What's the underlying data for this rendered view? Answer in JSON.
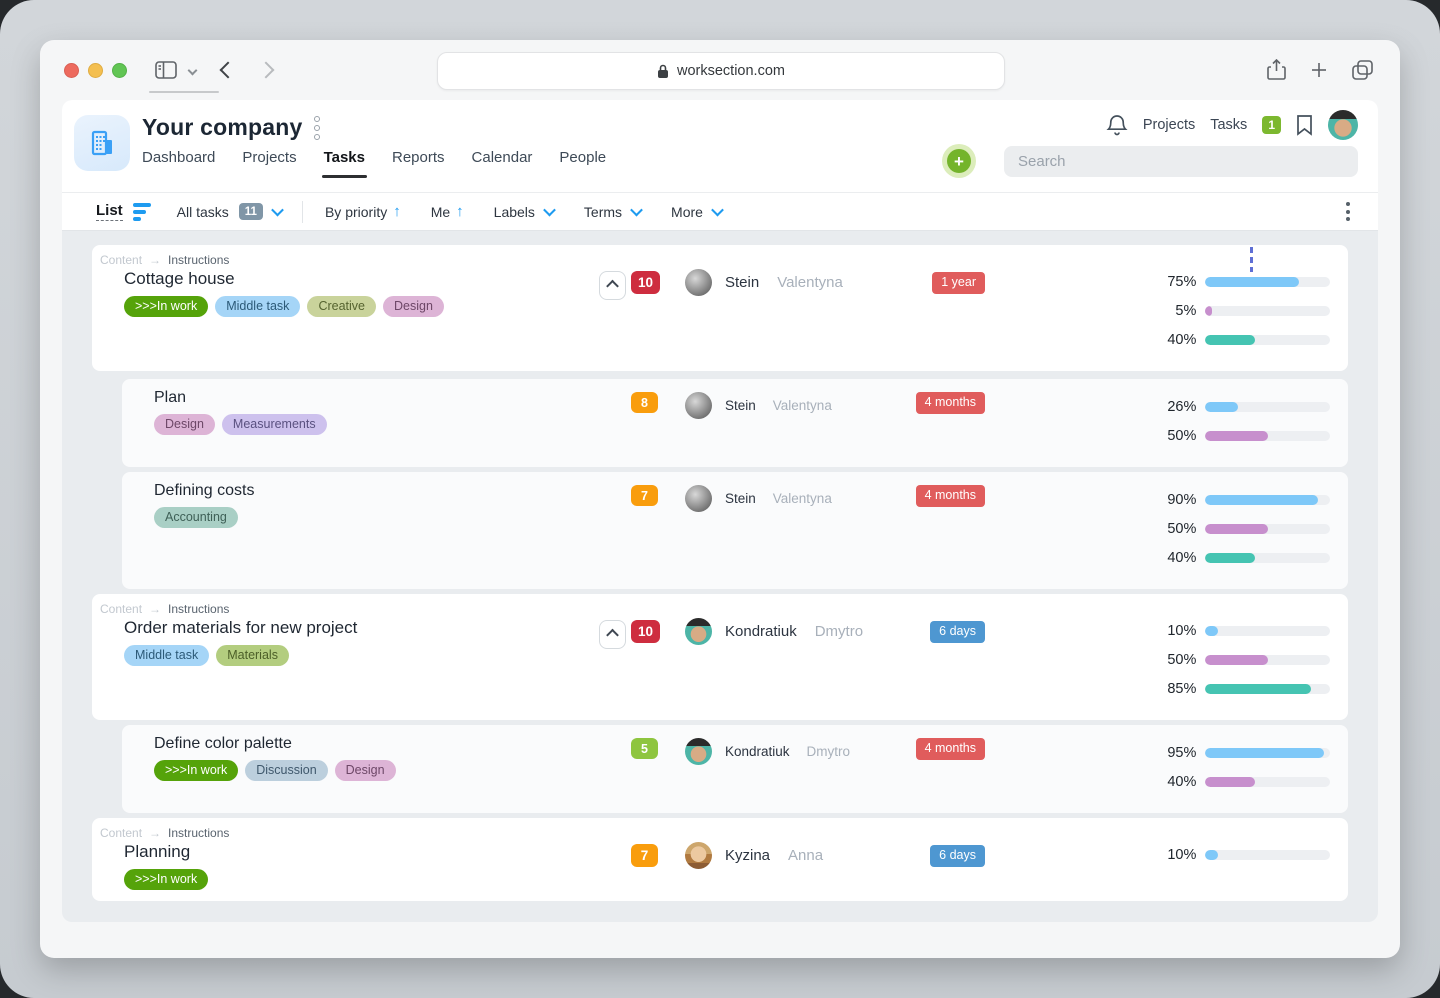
{
  "browser": {
    "url": "worksection.com"
  },
  "header": {
    "company": "Your company",
    "nav": [
      {
        "label": "Dashboard"
      },
      {
        "label": "Projects"
      },
      {
        "label": "Tasks"
      },
      {
        "label": "Reports"
      },
      {
        "label": "Calendar"
      },
      {
        "label": "People"
      }
    ],
    "quick": {
      "projects": "Projects",
      "tasks": "Tasks",
      "tasks_badge": "1"
    },
    "search_placeholder": "Search"
  },
  "filterbar": {
    "view": "List",
    "all_tasks": "All tasks",
    "count": "11",
    "options": [
      {
        "label": "By priority",
        "glyph": "up"
      },
      {
        "label": "Me",
        "glyph": "up"
      },
      {
        "label": "Labels",
        "glyph": "down"
      },
      {
        "label": "Terms",
        "glyph": "down"
      },
      {
        "label": "More",
        "glyph": "down"
      }
    ]
  },
  "palette": {
    "accent_blue": "#1e9bf0",
    "count": {
      "red": "#ce2d3f",
      "orange": "#f99d0d",
      "green": "#8ec53f"
    },
    "term": {
      "red": "#e05c5c",
      "blue": "#4e97d1"
    },
    "bar": {
      "blue": "#7ec8f8",
      "purple": "#c78fcd",
      "teal": "#45c4b2"
    },
    "tag": {
      "inwork": {
        "bg": "#55a30a",
        "fg": "#ffffff"
      },
      "blue": {
        "bg": "#a5d5f7",
        "fg": "#2c5a78"
      },
      "olive": {
        "bg": "#c9d39b",
        "fg": "#55632f"
      },
      "pink": {
        "bg": "#ddb4d6",
        "fg": "#6d4767"
      },
      "lavender": {
        "bg": "#cdc1ed",
        "fg": "#5a5180"
      },
      "teal": {
        "bg": "#a9cfc5",
        "fg": "#3f6057"
      },
      "bluegrey": {
        "bg": "#bccfdd",
        "fg": "#3f586c"
      },
      "green": {
        "bg": "#b3cd7f",
        "fg": "#4c5f28"
      }
    }
  },
  "tasks": [
    {
      "kind": "parent",
      "breadcrumb": [
        "Content",
        "Instructions"
      ],
      "title": "Cottage house",
      "tags": [
        {
          "label": ">>>In work",
          "style": "inwork"
        },
        {
          "label": "Middle task",
          "style": "blue"
        },
        {
          "label": "Creative",
          "style": "olive"
        },
        {
          "label": "Design",
          "style": "pink"
        }
      ],
      "collapse": true,
      "marker": true,
      "count": {
        "value": "10",
        "color": "red"
      },
      "person": {
        "last": "Stein",
        "first": "Valentyna",
        "avatar": "stein"
      },
      "term": {
        "label": "1 year",
        "color": "red"
      },
      "progress": [
        {
          "pct": 75,
          "color": "blue"
        },
        {
          "pct": 5,
          "color": "purple"
        },
        {
          "pct": 40,
          "color": "teal"
        }
      ]
    },
    {
      "kind": "sub",
      "title": "Plan",
      "tags": [
        {
          "label": "Design",
          "style": "pink"
        },
        {
          "label": "Measurements",
          "style": "lavender"
        }
      ],
      "collapse": false,
      "marker": false,
      "count": {
        "value": "8",
        "color": "orange"
      },
      "person": {
        "last": "Stein",
        "first": "Valentyna",
        "avatar": "stein"
      },
      "term": {
        "label": "4 months",
        "color": "red"
      },
      "progress": [
        {
          "pct": 26,
          "color": "blue"
        },
        {
          "pct": 50,
          "color": "purple"
        }
      ]
    },
    {
      "kind": "sub",
      "title": "Defining costs",
      "tags": [
        {
          "label": "Accounting",
          "style": "teal"
        }
      ],
      "collapse": false,
      "marker": false,
      "count": {
        "value": "7",
        "color": "orange"
      },
      "person": {
        "last": "Stein",
        "first": "Valentyna",
        "avatar": "stein"
      },
      "term": {
        "label": "4 months",
        "color": "red"
      },
      "progress": [
        {
          "pct": 90,
          "color": "blue"
        },
        {
          "pct": 50,
          "color": "purple"
        },
        {
          "pct": 40,
          "color": "teal"
        }
      ]
    },
    {
      "kind": "parent",
      "breadcrumb": [
        "Content",
        "Instructions"
      ],
      "title": "Order materials for new project",
      "tags": [
        {
          "label": "Middle task",
          "style": "blue"
        },
        {
          "label": "Materials",
          "style": "green"
        }
      ],
      "collapse": true,
      "marker": false,
      "count": {
        "value": "10",
        "color": "red"
      },
      "person": {
        "last": "Kondratiuk",
        "first": "Dmytro",
        "avatar": "kondratiuk"
      },
      "term": {
        "label": "6 days",
        "color": "blue"
      },
      "progress": [
        {
          "pct": 10,
          "color": "blue"
        },
        {
          "pct": 50,
          "color": "purple"
        },
        {
          "pct": 85,
          "color": "teal"
        }
      ]
    },
    {
      "kind": "sub",
      "title": "Define color palette",
      "tags": [
        {
          "label": ">>>In work",
          "style": "inwork"
        },
        {
          "label": "Discussion",
          "style": "bluegrey"
        },
        {
          "label": "Design",
          "style": "pink"
        }
      ],
      "collapse": false,
      "marker": false,
      "count": {
        "value": "5",
        "color": "green"
      },
      "person": {
        "last": "Kondratiuk",
        "first": "Dmytro",
        "avatar": "kondratiuk"
      },
      "term": {
        "label": "4 months",
        "color": "red"
      },
      "progress": [
        {
          "pct": 95,
          "color": "blue"
        },
        {
          "pct": 40,
          "color": "purple"
        }
      ]
    },
    {
      "kind": "parent",
      "breadcrumb": [
        "Content",
        "Instructions"
      ],
      "title": "Planning",
      "tags": [
        {
          "label": ">>>In work",
          "style": "inwork"
        }
      ],
      "collapse": false,
      "marker": false,
      "count": {
        "value": "7",
        "color": "orange"
      },
      "person": {
        "last": "Kyzina",
        "first": "Anna",
        "avatar": "kyzina"
      },
      "term": {
        "label": "6 days",
        "color": "blue"
      },
      "progress": [
        {
          "pct": 10,
          "color": "blue"
        }
      ]
    }
  ]
}
